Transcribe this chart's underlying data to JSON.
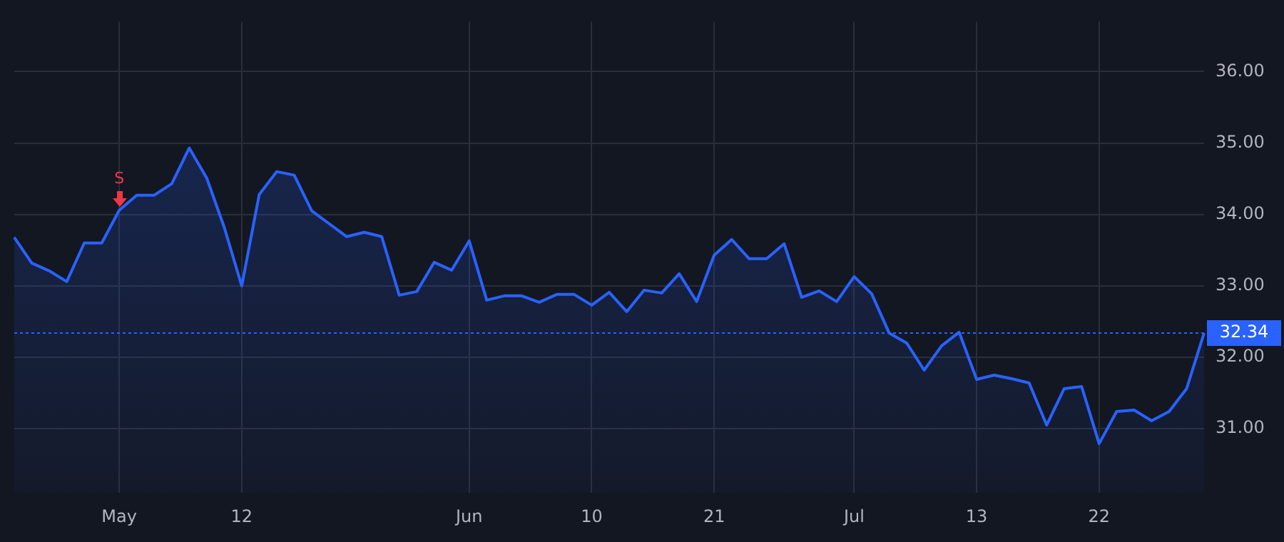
{
  "chart_data": {
    "type": "area",
    "categories": [
      null,
      null,
      null,
      null,
      null,
      null,
      "May",
      null,
      null,
      null,
      null,
      null,
      null,
      "12",
      null,
      null,
      null,
      null,
      null,
      null,
      null,
      null,
      null,
      null,
      null,
      null,
      "Jun",
      null,
      null,
      null,
      null,
      null,
      null,
      "10",
      null,
      null,
      null,
      null,
      null,
      null,
      "21",
      null,
      null,
      null,
      null,
      null,
      null,
      null,
      "Jul",
      null,
      null,
      null,
      null,
      null,
      null,
      "13",
      null,
      null,
      null,
      null,
      null,
      null,
      "22",
      null,
      null,
      null,
      null,
      null,
      null
    ],
    "series": [
      {
        "color": "#2962ff",
        "values": [
          33.68,
          33.32,
          33.21,
          33.06,
          33.6,
          33.6,
          34.06,
          34.27,
          34.27,
          34.43,
          34.93,
          34.51,
          33.82,
          33.0,
          34.28,
          34.6,
          34.55,
          34.05,
          33.87,
          33.69,
          33.75,
          33.69,
          32.87,
          32.92,
          33.33,
          33.22,
          33.63,
          32.8,
          32.86,
          32.86,
          32.77,
          32.88,
          32.88,
          32.73,
          32.91,
          32.64,
          32.94,
          32.9,
          33.17,
          32.78,
          33.43,
          33.65,
          33.38,
          33.38,
          33.59,
          32.84,
          32.93,
          32.78,
          33.13,
          32.89,
          32.34,
          32.2,
          31.82,
          32.16,
          32.35,
          31.69,
          31.75,
          31.7,
          31.64,
          31.05,
          31.56,
          31.59,
          30.79,
          31.24,
          31.26,
          31.11,
          31.24,
          31.56,
          32.34
        ]
      }
    ],
    "ylim": [
      30.1,
      36.7
    ],
    "yticks": [
      {
        "value": 31,
        "label": "31.00"
      },
      {
        "value": 32,
        "label": "32.00"
      },
      {
        "value": 33,
        "label": "33.00"
      },
      {
        "value": 34,
        "label": "34.00"
      },
      {
        "value": 35,
        "label": "35.00"
      },
      {
        "value": 36,
        "label": "36.00"
      }
    ],
    "grid": true,
    "legend": false,
    "marker": "none",
    "line_style": "solid",
    "ref_lines": [
      {
        "axis": "y",
        "value": 32.34,
        "label": "32.34",
        "color": "#2962ff",
        "line_style": "dotted"
      }
    ],
    "annotations": [
      {
        "text": "S",
        "x": "May",
        "y": 34.06
      }
    ]
  }
}
